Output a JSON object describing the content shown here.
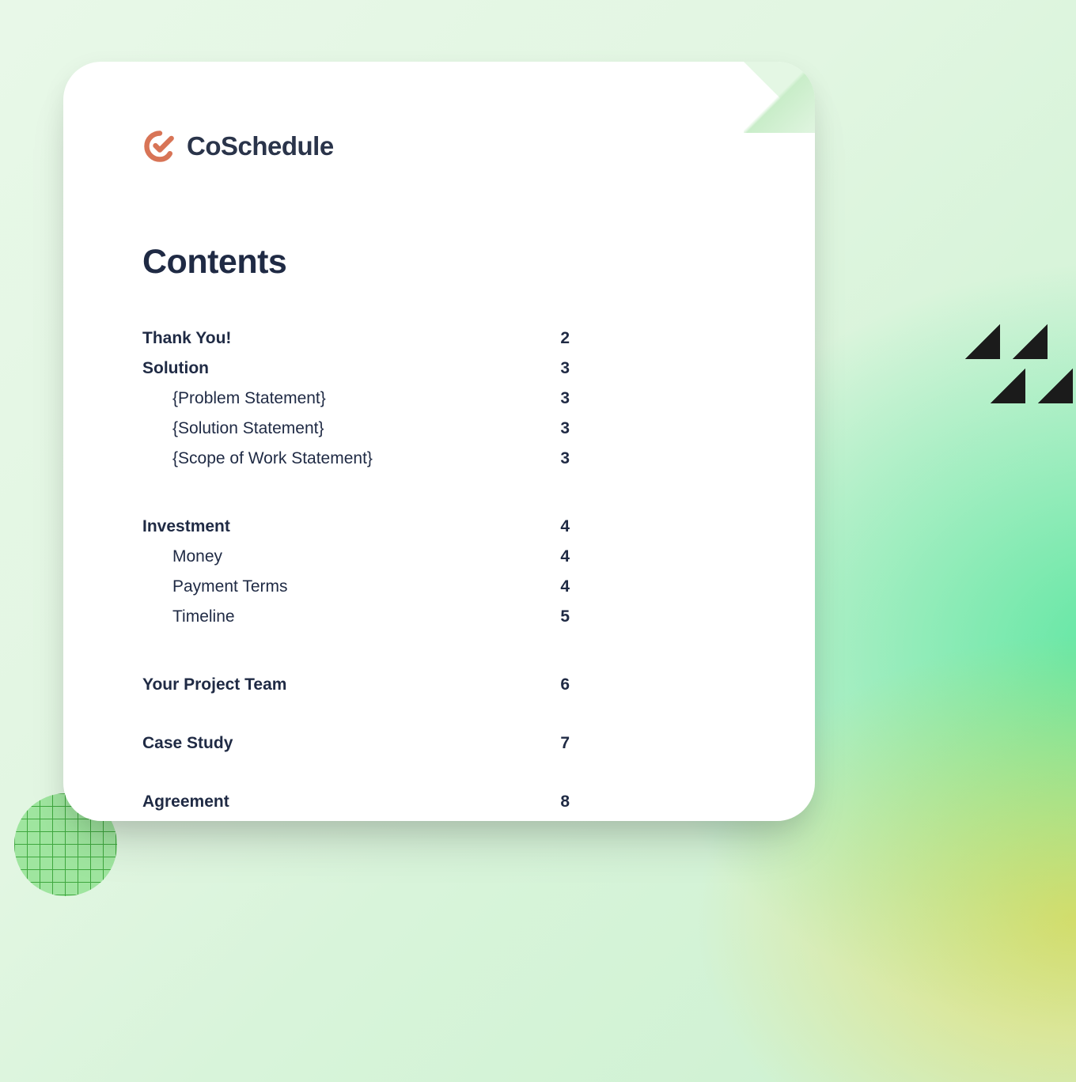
{
  "brand": {
    "name": "CoSchedule",
    "mark_color": "#d87456",
    "text_color": "#2a344a"
  },
  "title": "Contents",
  "colors": {
    "page_bg": "#ffffff",
    "text": "#1f2a44"
  },
  "toc": [
    {
      "label": "Thank You!",
      "page": "2",
      "bold": true,
      "indent": false
    },
    {
      "label": "Solution",
      "page": "3",
      "bold": true,
      "indent": false
    },
    {
      "label": "{Problem Statement}",
      "page": "3",
      "bold": false,
      "indent": true
    },
    {
      "label": "{Solution Statement}",
      "page": "3",
      "bold": false,
      "indent": true
    },
    {
      "label": "{Scope of Work Statement}",
      "page": "3",
      "bold": false,
      "indent": true
    },
    {
      "gap": "lg"
    },
    {
      "label": "Investment",
      "page": "4",
      "bold": true,
      "indent": false
    },
    {
      "label": "Money",
      "page": "4",
      "bold": false,
      "indent": true
    },
    {
      "label": "Payment Terms",
      "page": "4",
      "bold": false,
      "indent": true
    },
    {
      "label": "Timeline",
      "page": "5",
      "bold": false,
      "indent": true
    },
    {
      "gap": "lg"
    },
    {
      "label": "Your Project Team",
      "page": "6",
      "bold": true,
      "indent": false
    },
    {
      "gap": "sm"
    },
    {
      "label": "Case Study",
      "page": "7",
      "bold": true,
      "indent": false
    },
    {
      "gap": "sm"
    },
    {
      "label": "Agreement",
      "page": "8",
      "bold": true,
      "indent": false
    }
  ]
}
